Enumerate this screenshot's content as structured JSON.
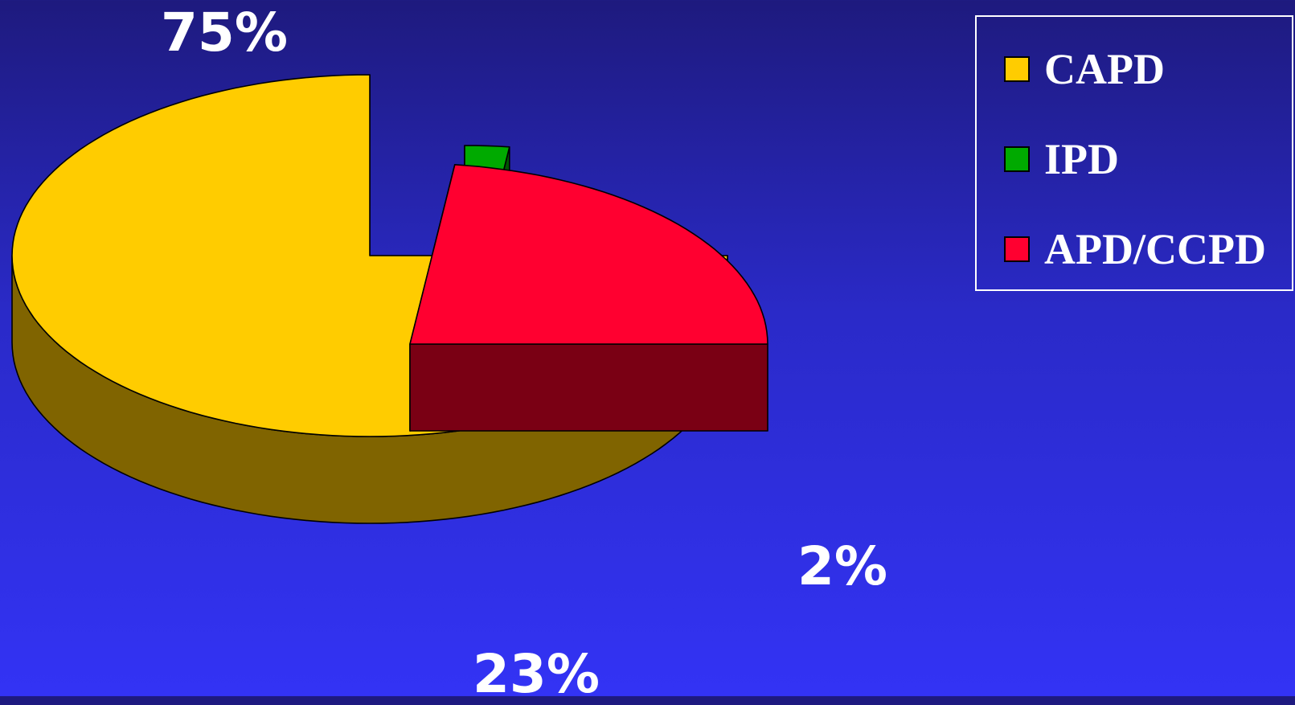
{
  "chart_data": {
    "type": "pie",
    "categories": [
      "CAPD",
      "IPD",
      "APD/CCPD"
    ],
    "values": [
      75,
      2,
      23
    ],
    "value_labels": [
      "75%",
      "2%",
      "23%"
    ],
    "colors": [
      "#ffcc00",
      "#00aa00",
      "#ff0030"
    ],
    "side_colors": [
      "#806400",
      "#005500",
      "#7a0014"
    ],
    "legend": {
      "position": "top-right",
      "entries": [
        "CAPD",
        "IPD",
        "APD/CCPD"
      ]
    },
    "style": "3d-exploded"
  }
}
